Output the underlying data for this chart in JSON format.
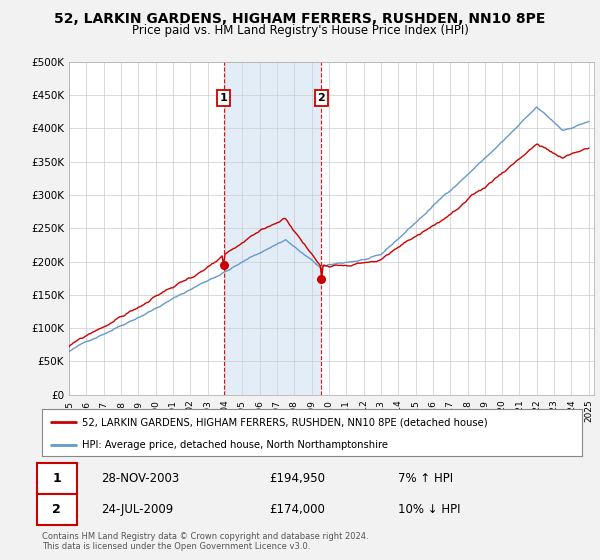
{
  "title_line1": "52, LARKIN GARDENS, HIGHAM FERRERS, RUSHDEN, NN10 8PE",
  "title_line2": "Price paid vs. HM Land Registry's House Price Index (HPI)",
  "ylim": [
    0,
    500000
  ],
  "yticks": [
    0,
    50000,
    100000,
    150000,
    200000,
    250000,
    300000,
    350000,
    400000,
    450000,
    500000
  ],
  "ytick_labels": [
    "£0",
    "£50K",
    "£100K",
    "£150K",
    "£200K",
    "£250K",
    "£300K",
    "£350K",
    "£400K",
    "£450K",
    "£500K"
  ],
  "hpi_color": "#6699cc",
  "price_color": "#cc0000",
  "sale1_year": 2003.92,
  "sale1_price": 194950,
  "sale1_label": "1",
  "sale1_date": "28-NOV-2003",
  "sale1_amount": "£194,950",
  "sale1_hpi": "7% ↑ HPI",
  "sale2_year": 2009.56,
  "sale2_price": 174000,
  "sale2_label": "2",
  "sale2_date": "24-JUL-2009",
  "sale2_amount": "£174,000",
  "sale2_hpi": "10% ↓ HPI",
  "legend_line1": "52, LARKIN GARDENS, HIGHAM FERRERS, RUSHDEN, NN10 8PE (detached house)",
  "legend_line2": "HPI: Average price, detached house, North Northamptonshire",
  "footnote": "Contains HM Land Registry data © Crown copyright and database right 2024.\nThis data is licensed under the Open Government Licence v3.0.",
  "bg_color": "#f2f2f2",
  "plot_bg": "#ffffff",
  "shaded_region_color": "#dce9f5"
}
